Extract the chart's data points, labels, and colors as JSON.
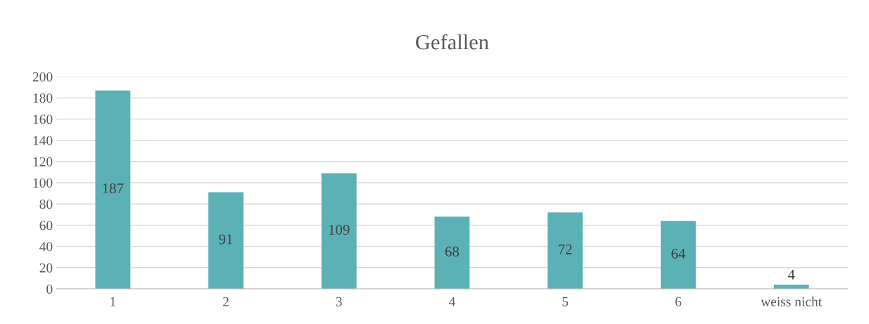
{
  "chart_data": {
    "type": "bar",
    "title": "Gefallen",
    "categories": [
      "1",
      "2",
      "3",
      "4",
      "5",
      "6",
      "weiss nicht"
    ],
    "values": [
      187,
      91,
      109,
      68,
      72,
      64,
      4
    ],
    "color": "#5bb1b5",
    "ylim": [
      0,
      200
    ],
    "yticks": [
      0,
      20,
      40,
      60,
      80,
      100,
      120,
      140,
      160,
      180,
      200
    ],
    "grid": "y",
    "data_labels": true,
    "legend": false
  }
}
